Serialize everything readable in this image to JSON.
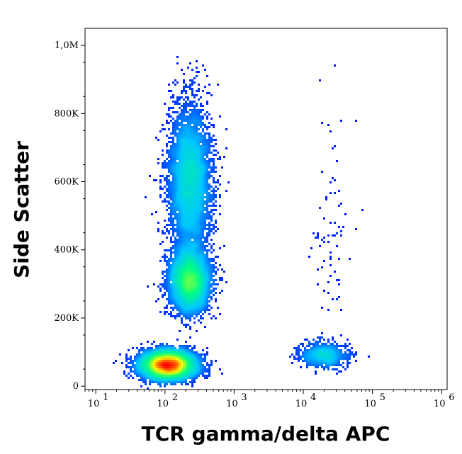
{
  "chart_data": {
    "type": "scatter",
    "subtype": "flow-cytometry-density-dot-plot",
    "xlabel": "TCR gamma/delta APC",
    "ylabel": "Side Scatter",
    "x_scale": "log",
    "xlim": [
      7,
      1200000
    ],
    "ylim": [
      -10000,
      1050000
    ],
    "x_ticks": [
      {
        "value": 10,
        "base": "10",
        "exp": "1"
      },
      {
        "value": 100,
        "base": "10",
        "exp": "2"
      },
      {
        "value": 1000,
        "base": "10",
        "exp": "3"
      },
      {
        "value": 10000,
        "base": "10",
        "exp": "4"
      },
      {
        "value": 100000,
        "base": "10",
        "exp": "5"
      },
      {
        "value": 1000000,
        "base": "10",
        "exp": "6"
      }
    ],
    "y_ticks": [
      {
        "value": 0,
        "label": "0"
      },
      {
        "value": 200000,
        "label": "200K"
      },
      {
        "value": 400000,
        "label": "400K"
      },
      {
        "value": 600000,
        "label": "600K"
      },
      {
        "value": 800000,
        "label": "800K"
      },
      {
        "value": 1000000,
        "label": "1,0M"
      }
    ],
    "density_colormap": [
      "#0000ff",
      "#00c8ff",
      "#00ff80",
      "#ffff00",
      "#ff0000"
    ],
    "populations": [
      {
        "x_center": 110,
        "y_center": 62000,
        "x_log_sd": 0.16,
        "y_sd": 20000,
        "density": "high"
      },
      {
        "x_center": 230,
        "y_center": 600000,
        "x_log_sd": 0.13,
        "y_sd": 110000,
        "density": "medium"
      },
      {
        "x_center": 230,
        "y_center": 310000,
        "x_log_sd": 0.12,
        "y_sd": 45000,
        "density": "medium"
      },
      {
        "x_center": 20000,
        "y_center": 90000,
        "x_log_sd": 0.15,
        "y_sd": 18000,
        "density": "low"
      },
      {
        "x_center": 25000,
        "y_center": 450000,
        "x_log_sd": 0.12,
        "y_sd": 200000,
        "density": "sparse"
      }
    ],
    "grid": false,
    "legend": "none"
  }
}
